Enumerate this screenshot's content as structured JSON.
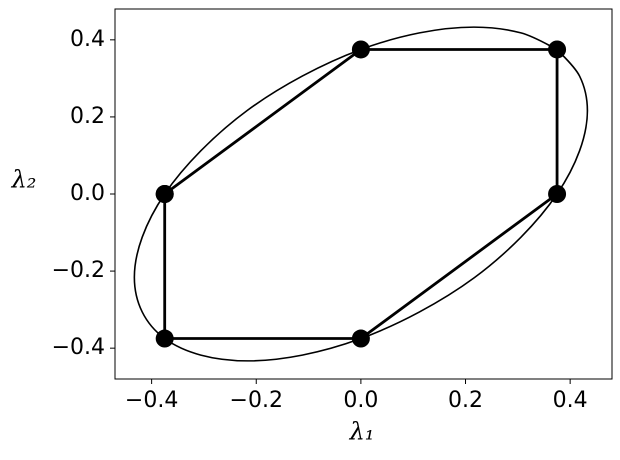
{
  "chart_data": {
    "type": "line",
    "xlabel": "λ₁",
    "ylabel": "λ₂",
    "xlim": [
      -0.47,
      0.48
    ],
    "ylim": [
      -0.48,
      0.48
    ],
    "xticks": [
      {
        "value": -0.4,
        "label": "−0.4"
      },
      {
        "value": -0.2,
        "label": "−0.2"
      },
      {
        "value": 0,
        "label": "0.0"
      },
      0.2,
      0.4
    ],
    "yticks": [
      {
        "value": -0.4,
        "label": "−0.4"
      },
      {
        "value": -0.2,
        "label": "−0.2"
      },
      {
        "value": 0,
        "label": "0.0"
      },
      0.2,
      0.4
    ],
    "grid": false,
    "series": [
      {
        "color": "#000000",
        "line_width": 1.6,
        "smooth": true,
        "markers": false,
        "x": [
          0.375,
          0.418,
          0.433,
          0.418,
          0.375,
          0.306,
          0.217,
          0.112,
          0,
          -0.112,
          -0.216,
          -0.306,
          -0.375,
          -0.418,
          -0.433,
          -0.418,
          -0.375,
          -0.306,
          -0.217,
          -0.112,
          0,
          0.112,
          0.216,
          0.306,
          0.375
        ],
        "values": [
          0.375,
          0.306,
          0.216,
          0.112,
          0,
          -0.112,
          -0.217,
          -0.306,
          -0.375,
          -0.418,
          -0.433,
          -0.418,
          -0.375,
          -0.306,
          -0.216,
          -0.112,
          0,
          0.112,
          0.217,
          0.306,
          0.375,
          0.418,
          0.433,
          0.418,
          0.375
        ]
      },
      {
        "color": "#000000",
        "line_width": 2.8,
        "smooth": false,
        "markers": true,
        "x": [
          -0.375,
          0,
          0.375,
          0.375,
          0,
          -0.375,
          -0.375
        ],
        "values": [
          0,
          0.375,
          0.375,
          0,
          -0.375,
          -0.375,
          0
        ]
      }
    ]
  }
}
